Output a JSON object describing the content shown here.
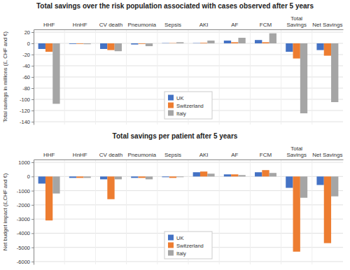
{
  "chart_data": [
    {
      "type": "bar",
      "title": "Total savings over the risk population associated with cases observed after 5 years",
      "categories": [
        "HHF",
        "HnHF",
        "CV death",
        "Pneumonia",
        "Sepsis",
        "AKI",
        "AF",
        "FCM",
        "Total\nSavings",
        "Net Savings"
      ],
      "y_label": "Total savings in millions (£, CHF and €)",
      "series": [
        {
          "name": "UK",
          "color": "#4472C4",
          "values": [
            -10,
            -1,
            -10,
            -2,
            0.5,
            0.5,
            5,
            6,
            -15,
            -12
          ]
        },
        {
          "name": "Switzerland",
          "color": "#ED7D31",
          "values": [
            -15,
            -1,
            -12,
            -1,
            0.5,
            1,
            2,
            2,
            -27,
            -22
          ]
        },
        {
          "name": "Italy",
          "color": "#A5A5A5",
          "values": [
            -108,
            -1.5,
            -14,
            -5,
            2,
            5,
            10,
            18,
            -125,
            -105
          ]
        }
      ],
      "ylim": [
        -145,
        25
      ],
      "yticks": [
        20,
        0,
        -20,
        -40,
        -60,
        -80,
        -100,
        -120,
        -140
      ],
      "grid": true,
      "legend": "lower center"
    },
    {
      "type": "bar",
      "title": "Total savings per patient after 5 years",
      "categories": [
        "HHF",
        "HnHF",
        "CV death",
        "Pneumonia",
        "Sepsis",
        "AKI",
        "AF",
        "FCM",
        "Total\nSavings",
        "Net Savings"
      ],
      "y_label": "Net budget impact (£,CHF and €)",
      "series": [
        {
          "name": "UK",
          "color": "#4472C4",
          "values": [
            -500,
            -100,
            -200,
            -100,
            -50,
            300,
            150,
            300,
            -800,
            -600
          ]
        },
        {
          "name": "Switzerland",
          "color": "#ED7D31",
          "values": [
            -3100,
            -100,
            -1600,
            -100,
            -100,
            350,
            150,
            450,
            -5300,
            -4700
          ]
        },
        {
          "name": "Italy",
          "color": "#A5A5A5",
          "values": [
            -1200,
            -100,
            -200,
            -200,
            -50,
            200,
            100,
            250,
            -1500,
            -1400
          ]
        }
      ],
      "ylim": [
        -6200,
        1200
      ],
      "yticks": [
        1000,
        0,
        -1000,
        -2000,
        -3000,
        -4000,
        -5000,
        -6000
      ],
      "grid": true,
      "legend": "lower center"
    }
  ]
}
